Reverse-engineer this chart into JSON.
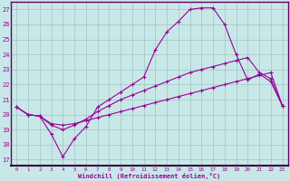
{
  "background_color": "#c8e8e8",
  "plot_bg_color": "#c8e8e8",
  "line_color": "#990099",
  "grid_color": "#99bbbb",
  "xlabel": "Windchill (Refroidissement éolien,°C)",
  "x_ticks": [
    0,
    1,
    2,
    3,
    4,
    5,
    6,
    7,
    8,
    9,
    10,
    11,
    12,
    13,
    14,
    15,
    16,
    17,
    18,
    19,
    20,
    21,
    22,
    23
  ],
  "y_ticks": [
    17,
    18,
    19,
    20,
    21,
    22,
    23,
    24,
    25,
    26,
    27
  ],
  "ylim": [
    16.6,
    27.5
  ],
  "xlim": [
    -0.5,
    23.5
  ],
  "curve1_x": [
    0,
    1,
    2,
    3,
    4,
    5,
    6,
    7,
    8,
    9,
    10,
    11,
    12,
    13,
    14,
    15,
    16,
    17,
    18,
    19,
    20,
    21,
    22,
    23
  ],
  "curve1_y": [
    20.5,
    20.0,
    19.9,
    18.7,
    17.2,
    18.4,
    19.2,
    20.5,
    21.0,
    21.5,
    22.0,
    22.5,
    24.3,
    25.5,
    26.2,
    27.0,
    27.1,
    27.1,
    26.0,
    24.0,
    22.3,
    22.7,
    22.2,
    20.6
  ],
  "curve2_x": [
    0,
    1,
    2,
    3,
    4,
    5,
    6,
    7,
    8,
    9,
    10,
    11,
    12,
    13,
    14,
    15,
    16,
    17,
    18,
    19,
    20,
    21,
    22,
    23
  ],
  "curve2_y": [
    20.5,
    20.0,
    19.9,
    19.3,
    19.0,
    19.3,
    19.7,
    20.2,
    20.6,
    21.0,
    21.3,
    21.6,
    21.9,
    22.2,
    22.5,
    22.8,
    23.0,
    23.2,
    23.4,
    23.6,
    23.8,
    22.8,
    22.4,
    20.6
  ],
  "curve3_x": [
    0,
    1,
    2,
    3,
    4,
    5,
    6,
    7,
    8,
    9,
    10,
    11,
    12,
    13,
    14,
    15,
    16,
    17,
    18,
    19,
    20,
    21,
    22,
    23
  ],
  "curve3_y": [
    20.5,
    20.0,
    19.9,
    19.4,
    19.3,
    19.4,
    19.6,
    19.8,
    20.0,
    20.2,
    20.4,
    20.6,
    20.8,
    21.0,
    21.2,
    21.4,
    21.6,
    21.8,
    22.0,
    22.2,
    22.4,
    22.6,
    22.8,
    20.6
  ]
}
